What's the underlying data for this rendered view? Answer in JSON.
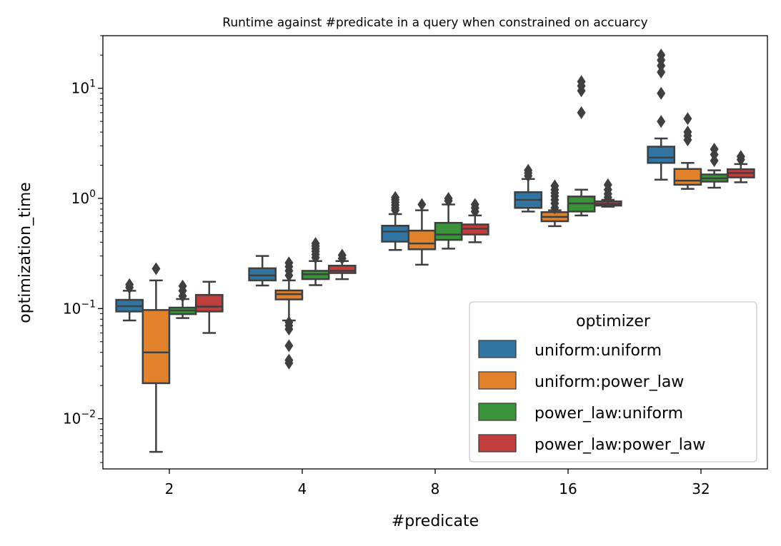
{
  "chart_data": {
    "type": "box",
    "title": "Runtime against #predicate in a query when constrained on accuarcy",
    "xlabel": "#predicate",
    "ylabel": "optimization_time",
    "yscale": "log",
    "ylim": [
      0.0035,
      30
    ],
    "y_ticks": [
      {
        "value": 0.01,
        "base": "10",
        "exp": "−2"
      },
      {
        "value": 0.1,
        "base": "10",
        "exp": "−1"
      },
      {
        "value": 1,
        "base": "10",
        "exp": "0"
      },
      {
        "value": 10,
        "base": "10",
        "exp": "1"
      }
    ],
    "categories": [
      "2",
      "4",
      "8",
      "16",
      "32"
    ],
    "legend": {
      "title": "optimizer",
      "position": "lower-right"
    },
    "series": [
      {
        "name": "uniform:uniform",
        "color": "#3274a1",
        "boxes": [
          {
            "whislo": 0.078,
            "q1": 0.094,
            "med": 0.105,
            "q3": 0.12,
            "whishi": 0.145,
            "fliers": [
              0.155,
              0.165
            ]
          },
          {
            "whislo": 0.162,
            "q1": 0.18,
            "med": 0.2,
            "q3": 0.232,
            "whishi": 0.3,
            "fliers": []
          },
          {
            "whislo": 0.34,
            "q1": 0.405,
            "med": 0.5,
            "q3": 0.565,
            "whishi": 0.72,
            "fliers": [
              0.78,
              0.82,
              0.87,
              0.92,
              0.97,
              1.02
            ]
          },
          {
            "whislo": 0.76,
            "q1": 0.82,
            "med": 0.97,
            "q3": 1.14,
            "whishi": 1.5,
            "fliers": [
              1.6,
              1.7,
              1.8
            ]
          },
          {
            "whislo": 1.48,
            "q1": 2.1,
            "med": 2.35,
            "q3": 2.95,
            "whishi": 3.5,
            "fliers": [
              5,
              9,
              14,
              16,
              18,
              20
            ]
          }
        ]
      },
      {
        "name": "uniform:power_law",
        "color": "#e1812c",
        "boxes": [
          {
            "whislo": 0.005,
            "q1": 0.021,
            "med": 0.04,
            "q3": 0.097,
            "whishi": 0.18,
            "fliers": [
              0.23
            ]
          },
          {
            "whislo": 0.078,
            "q1": 0.121,
            "med": 0.135,
            "q3": 0.146,
            "whishi": 0.18,
            "fliers": [
              0.032,
              0.034,
              0.046,
              0.065,
              0.07,
              0.075,
              0.2,
              0.22,
              0.24,
              0.26
            ]
          },
          {
            "whislo": 0.25,
            "q1": 0.345,
            "med": 0.39,
            "q3": 0.51,
            "whishi": 0.78,
            "fliers": [
              0.88
            ]
          },
          {
            "whislo": 0.56,
            "q1": 0.62,
            "med": 0.68,
            "q3": 0.75,
            "whishi": 0.78,
            "fliers": [
              0.82,
              0.9,
              0.97,
              1.05,
              1.12,
              1.2,
              1.3
            ]
          },
          {
            "whislo": 1.22,
            "q1": 1.33,
            "med": 1.45,
            "q3": 1.85,
            "whishi": 2.1,
            "fliers": [
              3.4,
              3.7,
              4,
              5.3
            ]
          }
        ]
      },
      {
        "name": "power_law:uniform",
        "color": "#3a923a",
        "boxes": [
          {
            "whislo": 0.082,
            "q1": 0.089,
            "med": 0.096,
            "q3": 0.102,
            "whishi": 0.122,
            "fliers": [
              0.13,
              0.145,
              0.16
            ]
          },
          {
            "whislo": 0.163,
            "q1": 0.185,
            "med": 0.205,
            "q3": 0.22,
            "whishi": 0.27,
            "fliers": [
              0.29,
              0.31,
              0.33,
              0.35,
              0.37,
              0.39
            ]
          },
          {
            "whislo": 0.35,
            "q1": 0.42,
            "med": 0.47,
            "q3": 0.6,
            "whishi": 0.88,
            "fliers": [
              0.95,
              1.0
            ]
          },
          {
            "whislo": 0.7,
            "q1": 0.76,
            "med": 0.9,
            "q3": 1.04,
            "whishi": 1.2,
            "fliers": [
              6,
              9.5,
              10.5,
              11.5
            ]
          },
          {
            "whislo": 1.25,
            "q1": 1.42,
            "med": 1.52,
            "q3": 1.65,
            "whishi": 1.8,
            "fliers": [
              2.2,
              2.5,
              2.8
            ]
          }
        ]
      },
      {
        "name": "power_law:power_law",
        "color": "#c03d3e",
        "boxes": [
          {
            "whislo": 0.06,
            "q1": 0.094,
            "med": 0.104,
            "q3": 0.133,
            "whishi": 0.175,
            "fliers": []
          },
          {
            "whislo": 0.185,
            "q1": 0.21,
            "med": 0.22,
            "q3": 0.245,
            "whishi": 0.27,
            "fliers": [
              0.285,
              0.305
            ]
          },
          {
            "whislo": 0.4,
            "q1": 0.47,
            "med": 0.53,
            "q3": 0.58,
            "whishi": 0.7,
            "fliers": [
              0.76,
              0.82,
              0.88
            ]
          },
          {
            "whislo": 0.84,
            "q1": 0.86,
            "med": 0.89,
            "q3": 0.94,
            "whishi": 0.97,
            "fliers": [
              1.02,
              1.1,
              1.2,
              1.33
            ]
          },
          {
            "whislo": 1.4,
            "q1": 1.55,
            "med": 1.7,
            "q3": 1.84,
            "whishi": 2.05,
            "fliers": [
              2.25,
              2.4
            ]
          }
        ]
      }
    ]
  }
}
